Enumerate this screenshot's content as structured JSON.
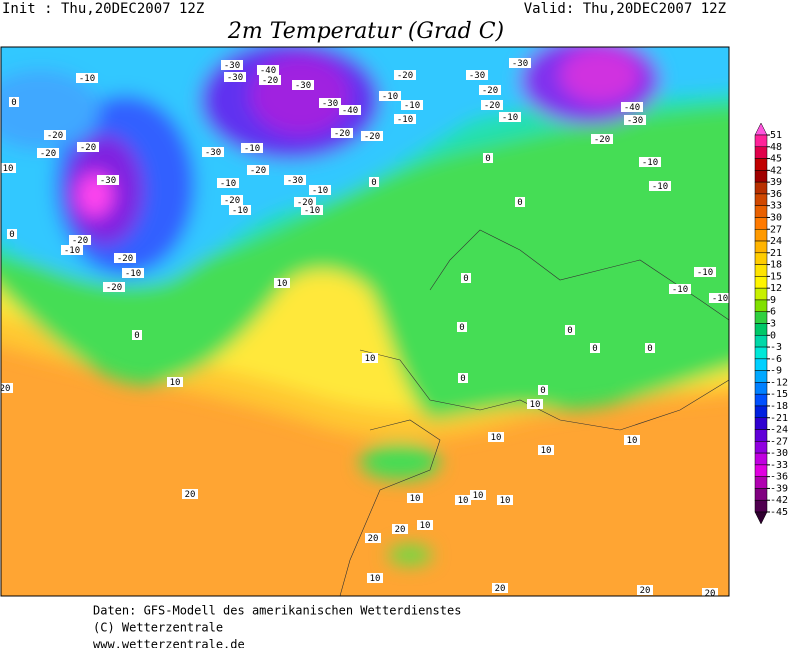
{
  "header": {
    "init": "Init : Thu,20DEC2007 12Z",
    "valid": "Valid: Thu,20DEC2007 12Z",
    "title": "2m Temperatur (Grad C)"
  },
  "map": {
    "contour_labels": [
      "-10",
      "0",
      "-20",
      "-20",
      "-20",
      "10",
      "-30",
      "-30",
      "-10",
      "-20",
      "-10",
      "-20",
      "-10",
      "-30",
      "-10",
      "-20",
      "-10",
      "0",
      "-20",
      "-20",
      "-30",
      "-40",
      "-30",
      "-30",
      "-40",
      "-20",
      "-30",
      "-10",
      "-10",
      "-10",
      "-20",
      "-30",
      "-20",
      "-30",
      "-20",
      "-10",
      "-40",
      "-30",
      "-20",
      "-10",
      "-10",
      "-10",
      "-10",
      "-10",
      "-20",
      "-10",
      "-20",
      "-10",
      "-20",
      "0",
      "0",
      "10",
      "10",
      "20",
      "20",
      "10",
      "0",
      "0",
      "0",
      "0",
      "0",
      "0",
      "0",
      "0",
      "0",
      "10",
      "10",
      "10",
      "10",
      "10",
      "10",
      "10",
      "10",
      "10",
      "20",
      "20",
      "10",
      "20",
      "20",
      "20"
    ]
  },
  "colorbar": {
    "labels": [
      51,
      48,
      45,
      42,
      39,
      36,
      33,
      30,
      27,
      24,
      21,
      18,
      15,
      12,
      9,
      6,
      3,
      0,
      -3,
      -6,
      -9,
      -12,
      -15,
      -18,
      -21,
      -24,
      -27,
      -30,
      -33,
      -36,
      -39,
      -42,
      -45
    ],
    "colors": [
      "#ff55dd",
      "#ff2299",
      "#e0004a",
      "#c00000",
      "#a00000",
      "#b83000",
      "#d04800",
      "#e86000",
      "#ff7a00",
      "#ff9a00",
      "#ffb400",
      "#ffcc00",
      "#ffe400",
      "#fff500",
      "#c8f000",
      "#80e000",
      "#30d040",
      "#00c868",
      "#00d8a8",
      "#00e8d8",
      "#00d0ff",
      "#00a8ff",
      "#0080ff",
      "#0050ff",
      "#0020e0",
      "#3000d0",
      "#6000d8",
      "#9000e0",
      "#c000e0",
      "#e000e0",
      "#b000b0",
      "#800080",
      "#500050",
      "#300030"
    ]
  },
  "footer": {
    "lines": [
      "Daten: GFS-Modell des amerikanischen Wetterdienstes",
      "(C) Wetterzentrale",
      "www.wetterzentrale.de"
    ]
  }
}
